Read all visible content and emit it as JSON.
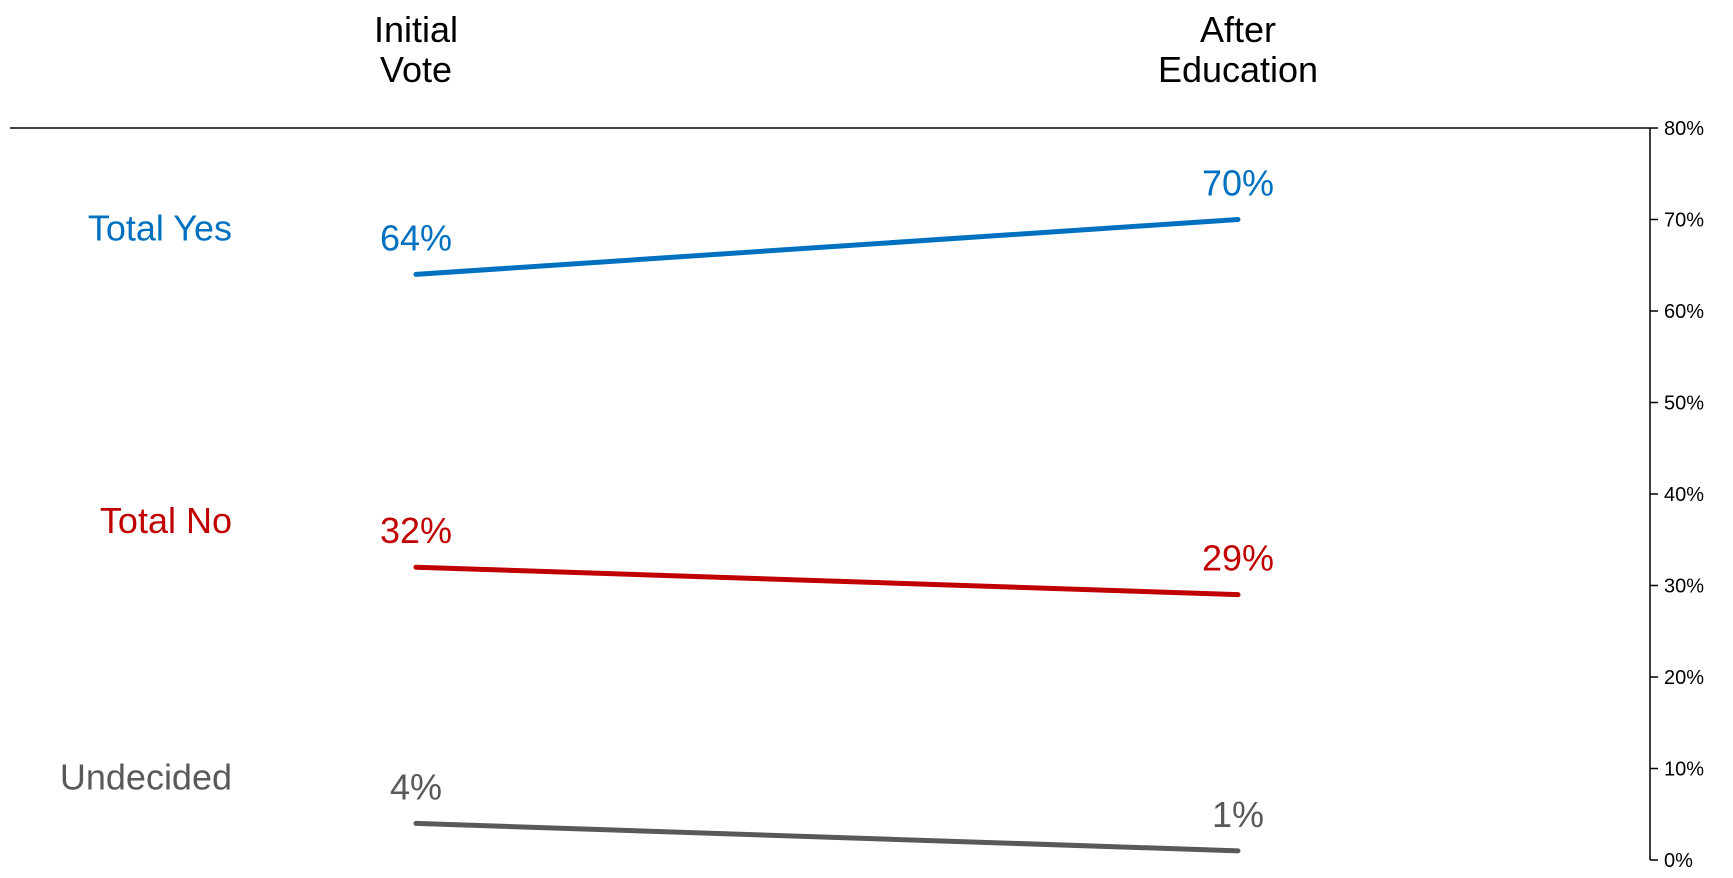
{
  "chart_data": {
    "type": "line",
    "categories": [
      [
        "Initial",
        "Vote"
      ],
      [
        "After",
        "Education"
      ]
    ],
    "y_axis": {
      "min": 0,
      "max": 80,
      "step": 10,
      "position": "right",
      "tick_labels": [
        "0%",
        "10%",
        "20%",
        "30%",
        "40%",
        "50%",
        "60%",
        "70%",
        "80%"
      ]
    },
    "grid": false,
    "legend": "left, inline series labels",
    "series": [
      {
        "name": "Total Yes",
        "values": [
          64,
          70
        ],
        "labels": [
          "64%",
          "70%"
        ],
        "color": "#0070C0"
      },
      {
        "name": "Total No",
        "values": [
          32,
          29
        ],
        "labels": [
          "32%",
          "29%"
        ],
        "color": "#C00000"
      },
      {
        "name": "Undecided",
        "values": [
          4,
          1
        ],
        "labels": [
          "4%",
          "1%"
        ],
        "color": "#595959"
      }
    ]
  }
}
